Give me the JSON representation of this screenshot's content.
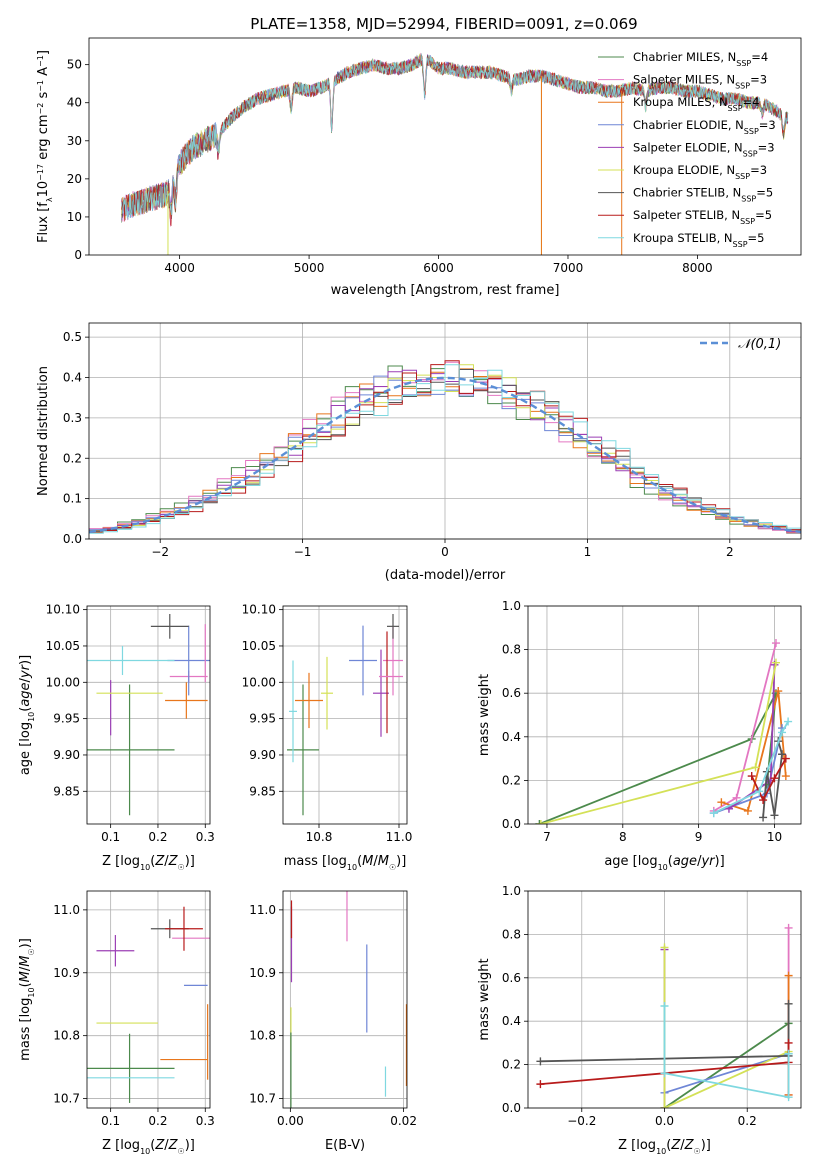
{
  "figure": {
    "title": "PLATE=1358, MJD=52994, FIBERID=0091, z=0.069"
  },
  "colors": {
    "chabrier_miles": "#4c8a4c",
    "salpeter_miles": "#e377c2",
    "kroupa_miles": "#e8761c",
    "chabrier_elodie": "#6f86d6",
    "salpeter_elodie": "#9b3fb5",
    "kroupa_elodie": "#d4e157",
    "chabrier_stelib": "#555555",
    "salpeter_stelib": "#b81b1b",
    "kroupa_stelib": "#7fd8e0",
    "gaussian": "#5b8fd6"
  },
  "chart_data": [
    {
      "id": "spectrum",
      "type": "line",
      "xlabel": "wavelength [Angstrom, rest frame]",
      "ylabel": "Flux [f_λ10^-17 erg cm^-2 s^-1 A^-1]",
      "xlim": [
        3300,
        8800
      ],
      "ylim": [
        0,
        57
      ],
      "xticks": [
        4000,
        5000,
        6000,
        7000,
        8000
      ],
      "yticks": [
        0,
        10,
        20,
        30,
        40,
        50
      ],
      "grid": false,
      "legend": "top-right",
      "series": [
        {
          "name": "Chabrier MILES, N_SSP=4",
          "color_key": "chabrier_miles"
        },
        {
          "name": "Salpeter MILES, N_SSP=3",
          "color_key": "salpeter_miles"
        },
        {
          "name": "Kroupa MILES, N_SSP=4",
          "color_key": "kroupa_miles"
        },
        {
          "name": "Chabrier ELODIE, N_SSP=3",
          "color_key": "chabrier_elodie"
        },
        {
          "name": "Salpeter ELODIE, N_SSP=3",
          "color_key": "salpeter_elodie"
        },
        {
          "name": "Kroupa ELODIE, N_SSP=3",
          "color_key": "kroupa_elodie"
        },
        {
          "name": "Chabrier STELIB, N_SSP=5",
          "color_key": "chabrier_stelib"
        },
        {
          "name": "Salpeter STELIB, N_SSP=5",
          "color_key": "salpeter_stelib"
        },
        {
          "name": "Kroupa STELIB, N_SSP=5",
          "color_key": "kroupa_stelib"
        }
      ],
      "continuum": {
        "x": [
          3550,
          3700,
          3800,
          3900,
          4000,
          4100,
          4200,
          4300,
          4400,
          4500,
          4600,
          4700,
          4800,
          4900,
          5000,
          5100,
          5200,
          5300,
          5400,
          5500,
          5600,
          5700,
          5800,
          5900,
          6000,
          6100,
          6200,
          6300,
          6400,
          6500,
          6600,
          6700,
          6800,
          6900,
          7000,
          7100,
          7200,
          7300,
          7400,
          7500,
          7600,
          7700,
          7800,
          7900,
          8000,
          8100,
          8200,
          8300,
          8400,
          8500,
          8600,
          8700
        ],
        "y": [
          12,
          14,
          15,
          16,
          24,
          28,
          30,
          32,
          36,
          39,
          41,
          42,
          43,
          44,
          43,
          44,
          46,
          48,
          49,
          50,
          49,
          49,
          50,
          52,
          49,
          49,
          48,
          48,
          48,
          47,
          46,
          47,
          47,
          46,
          45,
          44,
          44,
          43,
          43,
          44,
          43,
          44,
          44,
          43,
          43,
          42,
          41,
          41,
          40,
          40,
          38,
          36
        ]
      },
      "absorption_features": [
        {
          "x": 3933,
          "depth": 8
        },
        {
          "x": 3968,
          "depth": 7
        },
        {
          "x": 4300,
          "depth": 5
        },
        {
          "x": 4861,
          "depth": 5
        },
        {
          "x": 5175,
          "depth": 12
        },
        {
          "x": 5893,
          "depth": 10
        },
        {
          "x": 6563,
          "depth": 3
        },
        {
          "x": 7600,
          "depth": 4
        },
        {
          "x": 8500,
          "depth": 3
        },
        {
          "x": 8665,
          "depth": 5
        }
      ],
      "spikes_to_zero": [
        {
          "x": 3910,
          "series_index": 5
        },
        {
          "x": 6795,
          "series_index": 5
        },
        {
          "x": 6795,
          "series_index": 2
        },
        {
          "x": 7415,
          "series_index": 2
        }
      ]
    },
    {
      "id": "residuals",
      "type": "histogram",
      "xlabel": "(data-model)/error",
      "ylabel": "Normed distribution",
      "xlim": [
        -2.5,
        2.5
      ],
      "ylim": [
        0,
        0.535
      ],
      "xticks": [
        -2,
        -1,
        0,
        1,
        2
      ],
      "yticks": [
        0.0,
        0.1,
        0.2,
        0.3,
        0.4,
        0.5
      ],
      "grid": true,
      "legend": "top-right",
      "reference_curve": {
        "name": "𝒩(0,1)",
        "mean": 0,
        "sigma": 1
      },
      "bins": {
        "start": -2.5,
        "width": 0.1,
        "count": 50
      }
    },
    {
      "id": "age_vs_Z",
      "type": "errorbar",
      "xlabel": "Z [log10(Z/Z☉)]",
      "ylabel": "age  [log10(age/yr)]",
      "xlim": [
        0.05,
        0.31
      ],
      "ylim": [
        9.805,
        10.105
      ],
      "xticks": [
        0.1,
        0.2,
        0.3
      ],
      "yticks": [
        9.85,
        9.9,
        9.95,
        10.0,
        10.05,
        10.1
      ],
      "grid": true,
      "points": [
        {
          "color_key": "chabrier_miles",
          "x": 0.14,
          "xerr": 0.095,
          "y": 9.907,
          "yerr": 0.09
        },
        {
          "color_key": "salpeter_miles",
          "x": 0.265,
          "xerr": 0.04,
          "y": 10.008,
          "yerr": 0.008
        },
        {
          "color_key": "kroupa_miles",
          "x": 0.26,
          "xerr": 0.045,
          "y": 9.975,
          "yerr": 0.025
        },
        {
          "color_key": "chabrier_elodie",
          "x": 0.265,
          "xerr": 0.045,
          "y": 10.03,
          "yerr": 0.048
        },
        {
          "color_key": "salpeter_elodie",
          "x": 0.1,
          "xerr": 0.0,
          "y": 9.965,
          "yerr": 0.038
        },
        {
          "color_key": "kroupa_elodie",
          "x": 0.14,
          "xerr": 0.07,
          "y": 9.985,
          "yerr": 0.0
        },
        {
          "color_key": "chabrier_stelib",
          "x": 0.225,
          "xerr": 0.04,
          "y": 10.077,
          "yerr": 0.017
        },
        {
          "color_key": "salpeter_stelib",
          "x": 0.305,
          "xerr": 0.0,
          "y": 10.0,
          "yerr": 0.0
        },
        {
          "color_key": "kroupa_stelib",
          "x": 0.125,
          "xerr": 0.11,
          "y": 10.03,
          "yerr": 0.02
        },
        {
          "color_key": "salpeter_miles",
          "x": 0.3,
          "xerr": 0.0,
          "y": 10.04,
          "yerr": 0.04
        }
      ]
    },
    {
      "id": "age_vs_mass",
      "type": "errorbar",
      "xlabel": "mass [log10(M/M☉)]",
      "ylabel": "",
      "xlim": [
        10.71,
        11.02
      ],
      "ylim": [
        9.805,
        10.105
      ],
      "xticks": [
        10.8,
        11.0
      ],
      "yticks": [
        9.85,
        9.9,
        9.95,
        10.0,
        10.05,
        10.1
      ],
      "grid": true,
      "points": [
        {
          "color_key": "chabrier_miles",
          "x": 10.76,
          "xerr": 0.04,
          "y": 9.907,
          "yerr": 0.09
        },
        {
          "color_key": "salpeter_miles",
          "x": 10.985,
          "xerr": 0.025,
          "y": 10.03,
          "yerr": 0.048
        },
        {
          "color_key": "kroupa_miles",
          "x": 10.775,
          "xerr": 0.035,
          "y": 9.975,
          "yerr": 0.038
        },
        {
          "color_key": "chabrier_elodie",
          "x": 10.91,
          "xerr": 0.035,
          "y": 10.03,
          "yerr": 0.048
        },
        {
          "color_key": "salpeter_elodie",
          "x": 10.955,
          "xerr": 0.02,
          "y": 9.985,
          "yerr": 0.06
        },
        {
          "color_key": "kroupa_elodie",
          "x": 10.82,
          "xerr": 0.015,
          "y": 9.985,
          "yerr": 0.05
        },
        {
          "color_key": "chabrier_stelib",
          "x": 10.985,
          "xerr": 0.015,
          "y": 10.077,
          "yerr": 0.017
        },
        {
          "color_key": "salpeter_stelib",
          "x": 10.97,
          "xerr": 0.0,
          "y": 10.0,
          "yerr": 0.07
        },
        {
          "color_key": "kroupa_stelib",
          "x": 10.735,
          "xerr": 0.01,
          "y": 9.96,
          "yerr": 0.07
        },
        {
          "color_key": "salpeter_miles",
          "x": 10.98,
          "xerr": 0.03,
          "y": 10.008,
          "yerr": 0.0
        }
      ]
    },
    {
      "id": "weight_vs_age",
      "type": "line",
      "xlabel": "age  [log10(age/yr)]",
      "ylabel": "mass weight",
      "xlim": [
        6.75,
        10.35
      ],
      "ylim": [
        0,
        1.0
      ],
      "xticks": [
        7,
        8,
        9,
        10
      ],
      "yticks": [
        0.0,
        0.2,
        0.4,
        0.6,
        0.8,
        1.0
      ],
      "grid": true,
      "series": [
        {
          "color_key": "chabrier_miles",
          "x": [
            6.9,
            9.7,
            10.02,
            9.9
          ],
          "y": [
            0.0,
            0.39,
            0.6,
            0.18
          ]
        },
        {
          "color_key": "salpeter_miles",
          "x": [
            9.2,
            9.5,
            10.02
          ],
          "y": [
            0.06,
            0.12,
            0.83
          ]
        },
        {
          "color_key": "kroupa_miles",
          "x": [
            9.3,
            9.65,
            10.05,
            10.15
          ],
          "y": [
            0.1,
            0.06,
            0.61,
            0.22
          ]
        },
        {
          "color_key": "chabrier_elodie",
          "x": [
            9.2,
            9.9,
            10.1
          ],
          "y": [
            0.05,
            0.14,
            0.44
          ]
        },
        {
          "color_key": "salpeter_elodie",
          "x": [
            9.4,
            9.95,
            10.0
          ],
          "y": [
            0.07,
            0.2,
            0.73
          ]
        },
        {
          "color_key": "kroupa_elodie",
          "x": [
            6.92,
            9.75,
            10.02
          ],
          "y": [
            0.0,
            0.26,
            0.74
          ]
        },
        {
          "color_key": "chabrier_stelib",
          "x": [
            9.85,
            9.9,
            10.0,
            10.1,
            10.05
          ],
          "y": [
            0.03,
            0.24,
            0.04,
            0.32,
            0.38
          ]
        },
        {
          "color_key": "salpeter_stelib",
          "x": [
            9.7,
            9.85,
            10.0,
            10.15
          ],
          "y": [
            0.22,
            0.11,
            0.21,
            0.3
          ]
        },
        {
          "color_key": "kroupa_stelib",
          "x": [
            9.2,
            9.8,
            10.1,
            10.18
          ],
          "y": [
            0.05,
            0.15,
            0.42,
            0.47
          ]
        }
      ]
    },
    {
      "id": "mass_vs_Z",
      "type": "errorbar",
      "xlabel": "Z [log10(Z/Z☉)]",
      "ylabel": "mass [log10(M/M☉)]",
      "xlim": [
        0.05,
        0.31
      ],
      "ylim": [
        10.685,
        11.03
      ],
      "xticks": [
        0.1,
        0.2,
        0.3
      ],
      "yticks": [
        10.7,
        10.8,
        10.9,
        11.0
      ],
      "grid": true,
      "points": [
        {
          "color_key": "chabrier_miles",
          "x": 0.14,
          "xerr": 0.095,
          "y": 10.748,
          "yerr": 0.055
        },
        {
          "color_key": "salpeter_miles",
          "x": 0.27,
          "xerr": 0.04,
          "y": 10.955,
          "yerr": 0.0
        },
        {
          "color_key": "kroupa_miles",
          "x": 0.255,
          "xerr": 0.05,
          "y": 10.762,
          "yerr": 0.0
        },
        {
          "color_key": "chabrier_elodie",
          "x": 0.28,
          "xerr": 0.025,
          "y": 10.88,
          "yerr": 0.0
        },
        {
          "color_key": "salpeter_elodie",
          "x": 0.11,
          "xerr": 0.04,
          "y": 10.935,
          "yerr": 0.025
        },
        {
          "color_key": "kroupa_elodie",
          "x": 0.135,
          "xerr": 0.065,
          "y": 10.82,
          "yerr": 0.0
        },
        {
          "color_key": "chabrier_stelib",
          "x": 0.225,
          "xerr": 0.04,
          "y": 10.97,
          "yerr": 0.015
        },
        {
          "color_key": "salpeter_stelib",
          "x": 0.255,
          "xerr": 0.04,
          "y": 10.97,
          "yerr": 0.035
        },
        {
          "color_key": "kroupa_stelib",
          "x": 0.125,
          "xerr": 0.11,
          "y": 10.733,
          "yerr": 0.0
        },
        {
          "color_key": "kroupa_miles",
          "x": 0.305,
          "xerr": 0.0,
          "y": 10.79,
          "yerr": 0.06
        }
      ]
    },
    {
      "id": "mass_vs_ebv",
      "type": "errorbar",
      "xlabel": "E(B-V)",
      "ylabel": "",
      "xlim": [
        -0.0013,
        0.0206
      ],
      "ylim": [
        10.685,
        11.03
      ],
      "xticks": [
        0.0,
        0.02
      ],
      "yticks": [
        10.7,
        10.8,
        10.9,
        11.0
      ],
      "grid": true,
      "points": [
        {
          "color_key": "salpeter_miles",
          "x": 0.01,
          "xerr": 0.0,
          "y": 11.03,
          "yerr": 0.08
        },
        {
          "color_key": "chabrier_elodie",
          "x": 0.0135,
          "xerr": 0.0,
          "y": 10.875,
          "yerr": 0.07
        },
        {
          "color_key": "kroupa_stelib",
          "x": 0.0168,
          "xerr": 0.0,
          "y": 10.727,
          "yerr": 0.024
        },
        {
          "color_key": "kroupa_miles",
          "x": 0.0205,
          "xerr": 0.0,
          "y": 10.785,
          "yerr": 0.065
        },
        {
          "color_key": "salpeter_elodie",
          "x": 0.0002,
          "xerr": 0.0,
          "y": 10.945,
          "yerr": 0.06
        },
        {
          "color_key": "salpeter_stelib",
          "x": 0.0002,
          "xerr": 0.0,
          "y": 10.985,
          "yerr": 0.03
        },
        {
          "color_key": "kroupa_elodie",
          "x": 0.0001,
          "xerr": 0.0,
          "y": 10.81,
          "yerr": 0.035
        },
        {
          "color_key": "chabrier_miles",
          "x": 0.0001,
          "xerr": 0.0,
          "y": 10.745,
          "yerr": 0.06
        }
      ]
    },
    {
      "id": "weight_vs_Z",
      "type": "line",
      "xlabel": "Z [log10(Z/Z☉)]",
      "ylabel": "mass weight",
      "xlim": [
        -0.33,
        0.33
      ],
      "ylim": [
        0,
        1.0
      ],
      "xticks": [
        -0.2,
        0.0,
        0.2
      ],
      "yticks": [
        0.0,
        0.2,
        0.4,
        0.6,
        0.8,
        1.0
      ],
      "grid": true,
      "series": [
        {
          "color_key": "chabrier_miles",
          "x": [
            0.0,
            0.3
          ],
          "y": [
            0.0,
            0.39
          ]
        },
        {
          "color_key": "salpeter_miles",
          "x": [
            0.3,
            0.3
          ],
          "y": [
            0.06,
            0.83
          ]
        },
        {
          "color_key": "kroupa_miles",
          "x": [
            0.3,
            0.3
          ],
          "y": [
            0.06,
            0.61
          ]
        },
        {
          "color_key": "chabrier_elodie",
          "x": [
            0.0,
            0.3
          ],
          "y": [
            0.07,
            0.25
          ]
        },
        {
          "color_key": "salpeter_elodie",
          "x": [
            0.0,
            0.0
          ],
          "y": [
            0.0,
            0.73
          ]
        },
        {
          "color_key": "kroupa_elodie",
          "x": [
            0.0,
            0.0,
            0.3
          ],
          "y": [
            0.74,
            0.0,
            0.26
          ]
        },
        {
          "color_key": "chabrier_stelib",
          "x": [
            -0.3,
            0.3,
            0.3
          ],
          "y": [
            0.215,
            0.24,
            0.48
          ]
        },
        {
          "color_key": "salpeter_stelib",
          "x": [
            -0.3,
            0.3,
            0.3
          ],
          "y": [
            0.11,
            0.21,
            0.3
          ]
        },
        {
          "color_key": "kroupa_stelib",
          "x": [
            0.0,
            0.0,
            0.3,
            0.3
          ],
          "y": [
            0.47,
            0.16,
            0.05,
            0.25
          ]
        }
      ]
    }
  ]
}
